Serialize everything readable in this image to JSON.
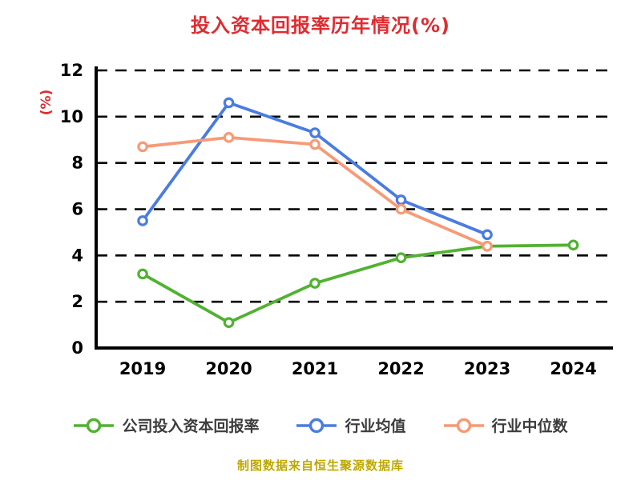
{
  "title": "投入资本回报率历年情况(%)",
  "ylabel": "(%)",
  "caption": "制图数据来自恒生聚源数据库",
  "colors": {
    "company": "#52b132",
    "industry_avg": "#4a7ce0",
    "industry_median": "#f79a76",
    "title": "#e02b31",
    "caption": "#bfa800",
    "axis": "#000000"
  },
  "chart_data": {
    "type": "line",
    "x": [
      2019,
      2020,
      2021,
      2022,
      2023,
      2024
    ],
    "series": [
      {
        "name": "公司投入资本回报率",
        "color_key": "company",
        "values": [
          3.2,
          1.1,
          2.8,
          3.9,
          4.4,
          4.45
        ]
      },
      {
        "name": "行业均值",
        "color_key": "industry_avg",
        "values": [
          5.5,
          10.6,
          9.3,
          6.4,
          4.9,
          null
        ]
      },
      {
        "name": "行业中位数",
        "color_key": "industry_median",
        "values": [
          8.7,
          9.1,
          8.8,
          6.0,
          4.4,
          null
        ]
      }
    ],
    "ylim": [
      0,
      12
    ],
    "yticks": [
      0,
      2,
      4,
      6,
      8,
      10,
      12
    ],
    "grid": "dashed-horizontal",
    "legend_position": "bottom"
  }
}
